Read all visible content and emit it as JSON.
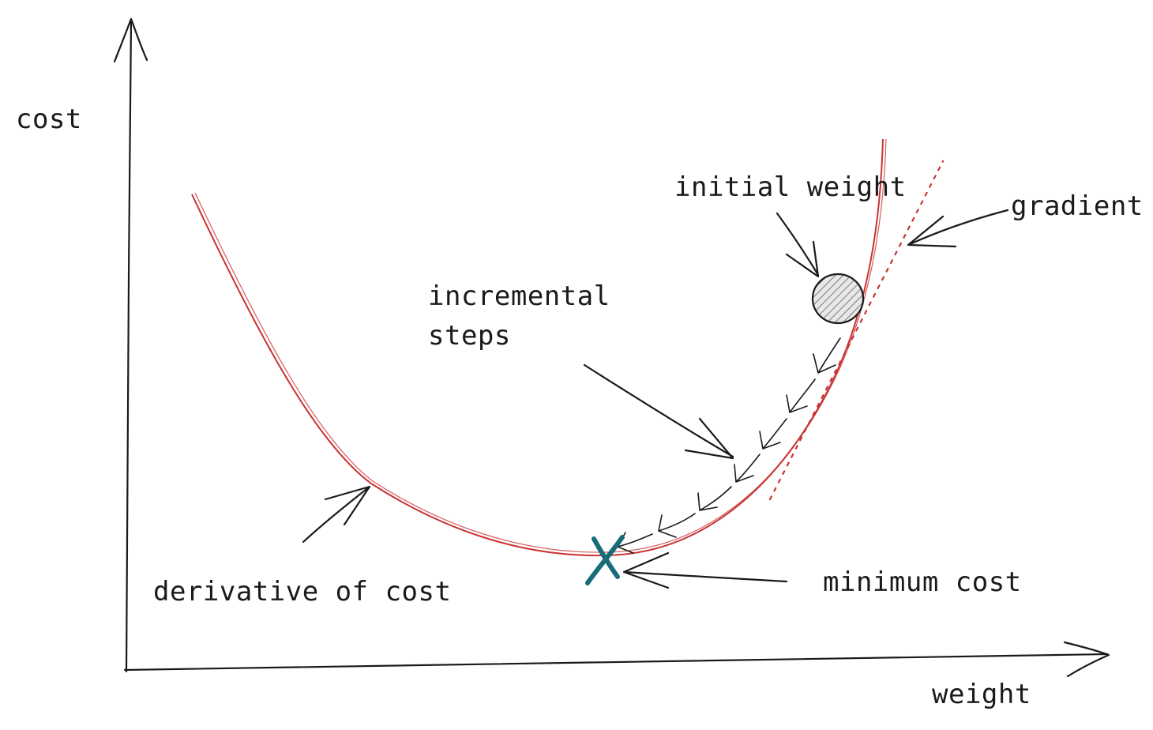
{
  "labels": {
    "y_axis": "cost",
    "x_axis": "weight",
    "initial_weight": "initial weight",
    "gradient": "gradient",
    "incremental_line1": "incremental",
    "incremental_line2": "steps",
    "derivative": "derivative of cost",
    "minimum": "minimum cost"
  },
  "colors": {
    "curve": "#c83232",
    "tangent": "#c83232",
    "minimum_marker": "#1a6b7a",
    "ink": "#1a1a1a",
    "ball_fill": "#e8e8e8"
  },
  "icons": {
    "minimum_marker": "x-mark-icon",
    "initial_weight": "hatched-circle-icon"
  },
  "step_arrow_count": 7
}
